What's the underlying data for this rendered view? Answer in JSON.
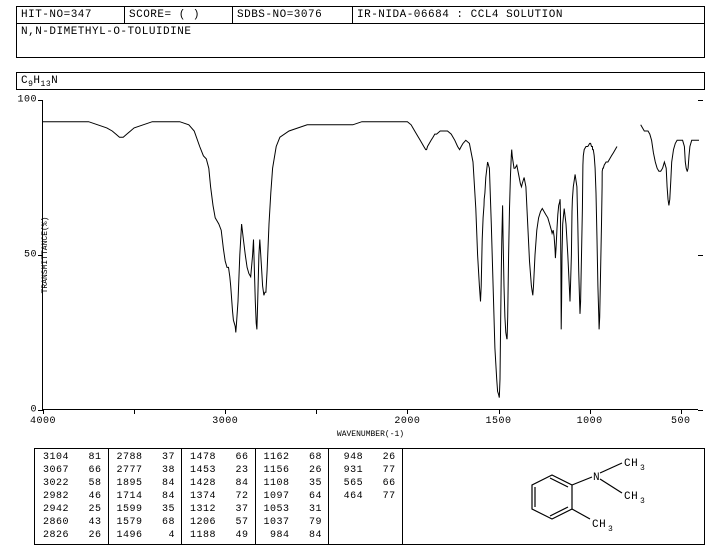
{
  "header": {
    "hit_no": "HIT-NO=347",
    "score": "SCORE=  (  )",
    "sdbs_no": "SDBS-NO=3076",
    "method": "IR-NIDA-06684 : CCL4 SOLUTION"
  },
  "compound_name": "N,N-DIMETHYL-O-TOLUIDINE",
  "formula_html": "C<sub>9</sub>H<sub>13</sub>N",
  "chart": {
    "type": "line",
    "xlabel": "WAVENUMBER(-1)",
    "ylabel": "TRANSMITTANCE(%)",
    "xlim": [
      4000,
      400
    ],
    "ylim": [
      0,
      100
    ],
    "xticks": [
      4000,
      3500,
      3000,
      2500,
      2000,
      1500,
      1000,
      500
    ],
    "xtick_labels": [
      "4000",
      "",
      "3000",
      "",
      "2000",
      "1500",
      "1000",
      "500"
    ],
    "yticks": [
      0,
      50,
      100
    ],
    "ytick_labels": [
      "0",
      "50",
      "100"
    ],
    "stroke": "#000000",
    "stroke_width": 1,
    "background": "#ffffff",
    "data": [
      [
        4000,
        93
      ],
      [
        3950,
        93
      ],
      [
        3900,
        93
      ],
      [
        3850,
        93
      ],
      [
        3800,
        93
      ],
      [
        3750,
        93
      ],
      [
        3700,
        92
      ],
      [
        3650,
        91
      ],
      [
        3620,
        90
      ],
      [
        3600,
        89
      ],
      [
        3580,
        88
      ],
      [
        3560,
        88
      ],
      [
        3540,
        89
      ],
      [
        3520,
        90
      ],
      [
        3500,
        91
      ],
      [
        3450,
        92
      ],
      [
        3400,
        93
      ],
      [
        3350,
        93
      ],
      [
        3300,
        93
      ],
      [
        3250,
        93
      ],
      [
        3200,
        92
      ],
      [
        3170,
        90
      ],
      [
        3140,
        85
      ],
      [
        3120,
        82
      ],
      [
        3104,
        81
      ],
      [
        3090,
        78
      ],
      [
        3080,
        72
      ],
      [
        3067,
        66
      ],
      [
        3055,
        62
      ],
      [
        3045,
        61
      ],
      [
        3035,
        60
      ],
      [
        3022,
        58
      ],
      [
        3010,
        52
      ],
      [
        3000,
        48
      ],
      [
        2990,
        46
      ],
      [
        2982,
        46
      ],
      [
        2975,
        43
      ],
      [
        2970,
        40
      ],
      [
        2965,
        36
      ],
      [
        2960,
        32
      ],
      [
        2955,
        29
      ],
      [
        2950,
        28
      ],
      [
        2945,
        27
      ],
      [
        2942,
        25
      ],
      [
        2938,
        28
      ],
      [
        2930,
        35
      ],
      [
        2920,
        50
      ],
      [
        2910,
        60
      ],
      [
        2900,
        55
      ],
      [
        2890,
        50
      ],
      [
        2880,
        46
      ],
      [
        2870,
        44
      ],
      [
        2860,
        43
      ],
      [
        2850,
        50
      ],
      [
        2845,
        55
      ],
      [
        2840,
        45
      ],
      [
        2835,
        35
      ],
      [
        2830,
        28
      ],
      [
        2826,
        26
      ],
      [
        2822,
        35
      ],
      [
        2815,
        50
      ],
      [
        2810,
        55
      ],
      [
        2800,
        45
      ],
      [
        2795,
        40
      ],
      [
        2788,
        37
      ],
      [
        2782,
        38
      ],
      [
        2777,
        38
      ],
      [
        2770,
        45
      ],
      [
        2760,
        60
      ],
      [
        2750,
        70
      ],
      [
        2740,
        78
      ],
      [
        2720,
        85
      ],
      [
        2700,
        88
      ],
      [
        2650,
        90
      ],
      [
        2600,
        91
      ],
      [
        2550,
        92
      ],
      [
        2500,
        92
      ],
      [
        2450,
        92
      ],
      [
        2400,
        92
      ],
      [
        2350,
        92
      ],
      [
        2300,
        92
      ],
      [
        2250,
        93
      ],
      [
        2200,
        93
      ],
      [
        2150,
        93
      ],
      [
        2100,
        93
      ],
      [
        2050,
        93
      ],
      [
        2000,
        93
      ],
      [
        1980,
        92
      ],
      [
        1960,
        90
      ],
      [
        1940,
        88
      ],
      [
        1930,
        87
      ],
      [
        1920,
        86
      ],
      [
        1910,
        85
      ],
      [
        1900,
        84
      ],
      [
        1895,
        84
      ],
      [
        1890,
        85
      ],
      [
        1880,
        86
      ],
      [
        1870,
        87
      ],
      [
        1860,
        88
      ],
      [
        1850,
        89
      ],
      [
        1840,
        89
      ],
      [
        1820,
        90
      ],
      [
        1800,
        90
      ],
      [
        1780,
        90
      ],
      [
        1760,
        89
      ],
      [
        1740,
        87
      ],
      [
        1725,
        85
      ],
      [
        1714,
        84
      ],
      [
        1705,
        85
      ],
      [
        1695,
        86
      ],
      [
        1680,
        87
      ],
      [
        1660,
        86
      ],
      [
        1640,
        80
      ],
      [
        1625,
        65
      ],
      [
        1615,
        50
      ],
      [
        1605,
        40
      ],
      [
        1599,
        35
      ],
      [
        1595,
        40
      ],
      [
        1590,
        55
      ],
      [
        1585,
        62
      ],
      [
        1580,
        66
      ],
      [
        1579,
        68
      ],
      [
        1575,
        70
      ],
      [
        1570,
        75
      ],
      [
        1560,
        80
      ],
      [
        1550,
        78
      ],
      [
        1540,
        60
      ],
      [
        1530,
        40
      ],
      [
        1520,
        20
      ],
      [
        1510,
        10
      ],
      [
        1505,
        6
      ],
      [
        1500,
        5
      ],
      [
        1496,
        4
      ],
      [
        1492,
        10
      ],
      [
        1488,
        30
      ],
      [
        1485,
        45
      ],
      [
        1482,
        55
      ],
      [
        1478,
        66
      ],
      [
        1475,
        55
      ],
      [
        1470,
        40
      ],
      [
        1465,
        30
      ],
      [
        1460,
        25
      ],
      [
        1455,
        23
      ],
      [
        1453,
        23
      ],
      [
        1450,
        30
      ],
      [
        1445,
        50
      ],
      [
        1440,
        65
      ],
      [
        1435,
        75
      ],
      [
        1430,
        82
      ],
      [
        1428,
        84
      ],
      [
        1425,
        82
      ],
      [
        1420,
        80
      ],
      [
        1415,
        78
      ],
      [
        1410,
        78
      ],
      [
        1400,
        79
      ],
      [
        1390,
        76
      ],
      [
        1380,
        73
      ],
      [
        1374,
        72
      ],
      [
        1370,
        73
      ],
      [
        1360,
        75
      ],
      [
        1350,
        72
      ],
      [
        1340,
        60
      ],
      [
        1330,
        48
      ],
      [
        1320,
        40
      ],
      [
        1315,
        38
      ],
      [
        1312,
        37
      ],
      [
        1308,
        40
      ],
      [
        1300,
        50
      ],
      [
        1290,
        58
      ],
      [
        1280,
        62
      ],
      [
        1270,
        64
      ],
      [
        1260,
        65
      ],
      [
        1250,
        64
      ],
      [
        1240,
        63
      ],
      [
        1230,
        62
      ],
      [
        1220,
        60
      ],
      [
        1210,
        58
      ],
      [
        1206,
        57
      ],
      [
        1200,
        58
      ],
      [
        1195,
        56
      ],
      [
        1190,
        52
      ],
      [
        1188,
        49
      ],
      [
        1185,
        52
      ],
      [
        1180,
        58
      ],
      [
        1175,
        63
      ],
      [
        1170,
        66
      ],
      [
        1165,
        67
      ],
      [
        1162,
        68
      ],
      [
        1160,
        62
      ],
      [
        1158,
        45
      ],
      [
        1156,
        26
      ],
      [
        1154,
        35
      ],
      [
        1152,
        50
      ],
      [
        1148,
        60
      ],
      [
        1140,
        65
      ],
      [
        1130,
        60
      ],
      [
        1120,
        50
      ],
      [
        1112,
        40
      ],
      [
        1108,
        35
      ],
      [
        1105,
        40
      ],
      [
        1100,
        50
      ],
      [
        1097,
        64
      ],
      [
        1095,
        68
      ],
      [
        1090,
        72
      ],
      [
        1080,
        76
      ],
      [
        1070,
        72
      ],
      [
        1065,
        60
      ],
      [
        1060,
        45
      ],
      [
        1055,
        35
      ],
      [
        1053,
        31
      ],
      [
        1050,
        35
      ],
      [
        1045,
        50
      ],
      [
        1040,
        65
      ],
      [
        1037,
        79
      ],
      [
        1035,
        82
      ],
      [
        1030,
        84
      ],
      [
        1020,
        85
      ],
      [
        1010,
        85
      ],
      [
        1000,
        86
      ],
      [
        995,
        86
      ],
      [
        990,
        85
      ],
      [
        985,
        85
      ],
      [
        984,
        84
      ],
      [
        980,
        84
      ],
      [
        975,
        82
      ],
      [
        970,
        78
      ],
      [
        965,
        70
      ],
      [
        960,
        55
      ],
      [
        955,
        40
      ],
      [
        950,
        30
      ],
      [
        948,
        26
      ],
      [
        945,
        30
      ],
      [
        940,
        45
      ],
      [
        935,
        60
      ],
      [
        932,
        72
      ],
      [
        931,
        77
      ],
      [
        928,
        78
      ],
      [
        925,
        78
      ],
      [
        920,
        79
      ],
      [
        910,
        80
      ],
      [
        900,
        80
      ],
      [
        890,
        81
      ],
      [
        880,
        82
      ],
      [
        870,
        83
      ],
      [
        860,
        84
      ],
      [
        850,
        85
      ]
    ],
    "gap": [
      850,
      720
    ],
    "data2": [
      [
        720,
        92
      ],
      [
        710,
        91
      ],
      [
        700,
        90
      ],
      [
        690,
        90
      ],
      [
        680,
        90
      ],
      [
        670,
        89
      ],
      [
        660,
        87
      ],
      [
        650,
        83
      ],
      [
        640,
        80
      ],
      [
        630,
        78
      ],
      [
        620,
        77
      ],
      [
        610,
        77
      ],
      [
        600,
        78
      ],
      [
        590,
        80
      ],
      [
        580,
        78
      ],
      [
        575,
        72
      ],
      [
        570,
        68
      ],
      [
        565,
        66
      ],
      [
        560,
        68
      ],
      [
        555,
        74
      ],
      [
        550,
        80
      ],
      [
        540,
        84
      ],
      [
        530,
        86
      ],
      [
        520,
        87
      ],
      [
        510,
        87
      ],
      [
        500,
        87
      ],
      [
        490,
        87
      ],
      [
        480,
        85
      ],
      [
        475,
        80
      ],
      [
        470,
        78
      ],
      [
        465,
        77
      ],
      [
        464,
        77
      ],
      [
        460,
        78
      ],
      [
        455,
        82
      ],
      [
        450,
        85
      ],
      [
        445,
        86
      ],
      [
        440,
        87
      ],
      [
        430,
        87
      ],
      [
        420,
        87
      ],
      [
        410,
        87
      ],
      [
        400,
        87
      ]
    ]
  },
  "peak_table": {
    "columns": [
      [
        [
          "3104",
          "81"
        ],
        [
          "3067",
          "66"
        ],
        [
          "3022",
          "58"
        ],
        [
          "2982",
          "46"
        ],
        [
          "2942",
          "25"
        ],
        [
          "2860",
          "43"
        ],
        [
          "2826",
          "26"
        ]
      ],
      [
        [
          "2788",
          "37"
        ],
        [
          "2777",
          "38"
        ],
        [
          "1895",
          "84"
        ],
        [
          "1714",
          "84"
        ],
        [
          "1599",
          "35"
        ],
        [
          "1579",
          "68"
        ],
        [
          "1496",
          " 4"
        ]
      ],
      [
        [
          "1478",
          "66"
        ],
        [
          "1453",
          "23"
        ],
        [
          "1428",
          "84"
        ],
        [
          "1374",
          "72"
        ],
        [
          "1312",
          "37"
        ],
        [
          "1206",
          "57"
        ],
        [
          "1188",
          "49"
        ]
      ],
      [
        [
          "1162",
          "68"
        ],
        [
          "1156",
          "26"
        ],
        [
          "1108",
          "35"
        ],
        [
          "1097",
          "64"
        ],
        [
          "1053",
          "31"
        ],
        [
          "1037",
          "79"
        ],
        [
          " 984",
          "84"
        ]
      ],
      [
        [
          " 948",
          "26"
        ],
        [
          " 931",
          "77"
        ],
        [
          " 565",
          "66"
        ],
        [
          " 464",
          "77"
        ]
      ]
    ]
  },
  "structure": {
    "labels": {
      "ch3_top": "CH",
      "ch3_bot": "CH",
      "ch3_ring": "CH",
      "sub3": "3",
      "n": "N"
    },
    "stroke": "#000000"
  }
}
